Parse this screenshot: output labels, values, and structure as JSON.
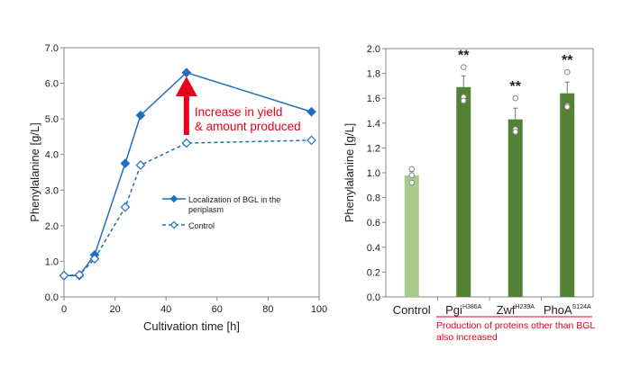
{
  "chart_data": [
    {
      "type": "line",
      "xlabel": "Cultivation time  [h]",
      "ylabel": "Phenylalanine  [g/L]",
      "xlim": [
        0,
        100
      ],
      "ylim": [
        0,
        7
      ],
      "xticks": [
        "0",
        "20",
        "40",
        "60",
        "80",
        "100"
      ],
      "yticks": [
        "0.0",
        "1.0",
        "2.0",
        "3.0",
        "4.0",
        "5.0",
        "6.0",
        "7.0"
      ],
      "grid": false,
      "legend_position": "center-right",
      "series": [
        {
          "name": "Localization of BGL in the periplasm",
          "style": "solid, filled diamond",
          "x": [
            0,
            6,
            12,
            24,
            30,
            48,
            97
          ],
          "y": [
            0.6,
            0.6,
            1.18,
            3.75,
            5.1,
            6.3,
            5.2
          ]
        },
        {
          "name": "Control",
          "style": "dashed, open diamond",
          "x": [
            0,
            6,
            12,
            24,
            30,
            48,
            97
          ],
          "y": [
            0.6,
            0.62,
            1.07,
            2.52,
            3.7,
            4.32,
            4.4
          ]
        }
      ],
      "legend_line1": "Localization of BGL in the",
      "legend_line2": "periplasm",
      "annotation_line1": "Increase in yield",
      "annotation_line2": "& amount produced",
      "colors": {
        "series": "#1f6fbf",
        "annotation": "#e8001c"
      }
    },
    {
      "type": "bar",
      "ylabel": "Phenylalanine  [g/L]",
      "ylim": [
        0,
        2.0
      ],
      "yticks": [
        "0.0",
        "0.2",
        "0.4",
        "0.6",
        "0.8",
        "1.0",
        "1.2",
        "1.4",
        "1.6",
        "1.8",
        "2.0"
      ],
      "categories": [
        {
          "name": "Control",
          "sup": ""
        },
        {
          "name": "Pgi",
          "sup": "H386A"
        },
        {
          "name": "Zwf",
          "sup": "H239A"
        },
        {
          "name": "PhoA",
          "sup": "S124A"
        }
      ],
      "values": [
        0.98,
        1.69,
        1.43,
        1.64
      ],
      "errors": [
        0.03,
        0.09,
        0.09,
        0.09
      ],
      "points": [
        [
          1.03,
          0.98,
          0.92
        ],
        [
          1.85,
          1.61,
          1.58
        ],
        [
          1.6,
          1.35,
          1.33
        ],
        [
          1.81,
          1.54,
          1.53
        ]
      ],
      "significance": [
        "",
        "**",
        "**",
        "**"
      ],
      "note_line1": "Production of proteins other than BGL",
      "note_line2": "also increased",
      "colors": {
        "control": "#a6cb8a",
        "mutant": "#548235",
        "note": "#e8001c"
      }
    }
  ]
}
